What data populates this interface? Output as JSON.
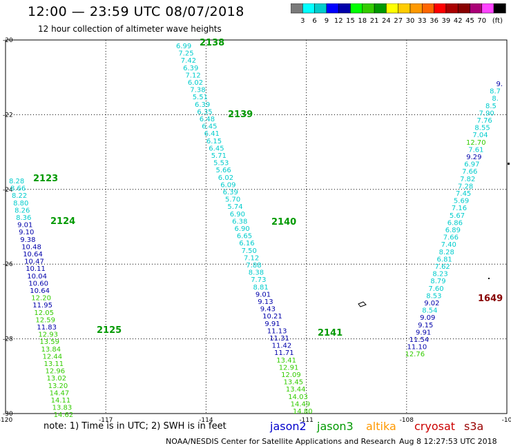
{
  "header": {
    "title": "12:00 — 23:59 UTC 08/07/2018",
    "subtitle": "12 hour collection of altimeter wave heights"
  },
  "colorbar": {
    "unit_label": "(ft)",
    "colors": [
      "#7a7a7a",
      "#00ffff",
      "#00cccc",
      "#0000ff",
      "#0000aa",
      "#00ff00",
      "#33cc00",
      "#009900",
      "#ffff00",
      "#ffcc00",
      "#ff9900",
      "#ff6600",
      "#ff0000",
      "#aa0000",
      "#880000",
      "#aa0077",
      "#ff44ff",
      "#000000"
    ],
    "labels": [
      "3",
      "6",
      "9",
      "12",
      "15",
      "18",
      "21",
      "24",
      "27",
      "30",
      "33",
      "36",
      "39",
      "42",
      "45",
      "70"
    ]
  },
  "map": {
    "lon_range": [
      -120,
      -105
    ],
    "lat_range": [
      -30,
      -20
    ],
    "x_axis_labels": [
      "-120",
      "-117",
      "-114",
      "-111",
      "-108",
      "-10"
    ],
    "y_axis_labels": [
      "-20",
      "-22",
      "-24",
      "-26",
      "-28",
      "-30"
    ]
  },
  "chart_data": {
    "type": "scatter",
    "xlabel": "",
    "ylabel": "",
    "xlim": [
      -120,
      -105
    ],
    "ylim": [
      -30,
      -20
    ],
    "grid": true,
    "tracks": [
      {
        "pass": "2123",
        "satellite": "jason3",
        "lat": -23.8,
        "lon": -119.3
      },
      {
        "pass": "2124",
        "satellite": "jason3",
        "lat": -25.0,
        "lon": -118.3
      },
      {
        "pass": "2125",
        "satellite": "jason3",
        "lat": -28.3,
        "lon": -116.7
      },
      {
        "pass": "2138",
        "satellite": "jason3",
        "lat": -20.1,
        "lon": -113.8
      },
      {
        "pass": "2139",
        "satellite": "jason3",
        "lat": -22.1,
        "lon": -112.8
      },
      {
        "pass": "2140",
        "satellite": "jason3",
        "lat": -25.0,
        "lon": -111.7
      },
      {
        "pass": "2141",
        "satellite": "jason3",
        "lat": -28.3,
        "lon": -110.3
      },
      {
        "pass": "1649",
        "satellite": "cryosat",
        "lat": -27.0,
        "lon": -105.4
      }
    ],
    "observations": [
      {
        "track": "2123",
        "values": [
          "8.28",
          "8.66",
          "8.22",
          "8.80",
          "8.26",
          "8.36",
          "9.01",
          "9.10",
          "9.38",
          "10.48",
          "10.64",
          "10.47",
          "10.11",
          "10.04",
          "10.60",
          "10.64",
          "12.20",
          "11.95",
          "12.05",
          "12.59",
          "11.83",
          "12.93",
          "13.59",
          "13.84",
          "12.44",
          "13.11",
          "12.96",
          "13.02",
          "13.20",
          "14.47",
          "14.11",
          "13.83",
          "14.62"
        ]
      },
      {
        "track": "2138",
        "values": [
          "6.99",
          "7.25",
          "7.42",
          "6.39",
          "7.12",
          "6.02",
          "7.38",
          "5.51",
          "6.39",
          "6.35",
          "6.48",
          "6.45",
          "6.41",
          "6.15",
          "6.45",
          "5.71",
          "5.53",
          "5.66",
          "6.02",
          "6.09",
          "6.39",
          "5.70",
          "5.74",
          "6.90",
          "6.38",
          "6.90",
          "6.65",
          "6.16",
          "7.50",
          "7.12",
          "7.88",
          "8.38",
          "7.73",
          "8.81",
          "9.01",
          "9.13",
          "9.43",
          "10.21",
          "9.91",
          "11.13",
          "11.31",
          "11.42",
          "11.71",
          "13.41",
          "12.91",
          "12.09",
          "13.45",
          "13.44",
          "14.03",
          "14.49",
          "14.80"
        ]
      },
      {
        "track": "1649",
        "values": [
          "9.",
          "8.7",
          "8.",
          "8.5",
          "7.90",
          "7.76",
          "8.55",
          "7.04",
          "12.70",
          "7.61",
          "9.29",
          "6.97",
          "7.66",
          "7.82",
          "7.28",
          "7.45",
          "5.69",
          "7.16",
          "5.67",
          "6.86",
          "6.89",
          "7.66",
          "7.40",
          "8.28",
          "6.81",
          "7.62",
          "8.23",
          "8.79",
          "7.60",
          "8.53",
          "9.02",
          "8.54",
          "9.09",
          "9.15",
          "9.91",
          "11.54",
          "11.10",
          "12.76"
        ]
      }
    ]
  },
  "footer": {
    "note": "note: 1) Time is in UTC; 2) SWH is in feet",
    "satellites": [
      {
        "name": "jason2",
        "color": "#0000cc"
      },
      {
        "name": "jason3",
        "color": "#009900"
      },
      {
        "name": "altika",
        "color": "#ff9900"
      },
      {
        "name": "cryosat",
        "color": "#cc0000"
      },
      {
        "name": "s3a",
        "color": "#990000"
      }
    ],
    "credit": "NOAA/NESDIS Center for Satellite Applications and Research",
    "timestamp": "Aug  8 12:27:53 UTC 2018"
  }
}
